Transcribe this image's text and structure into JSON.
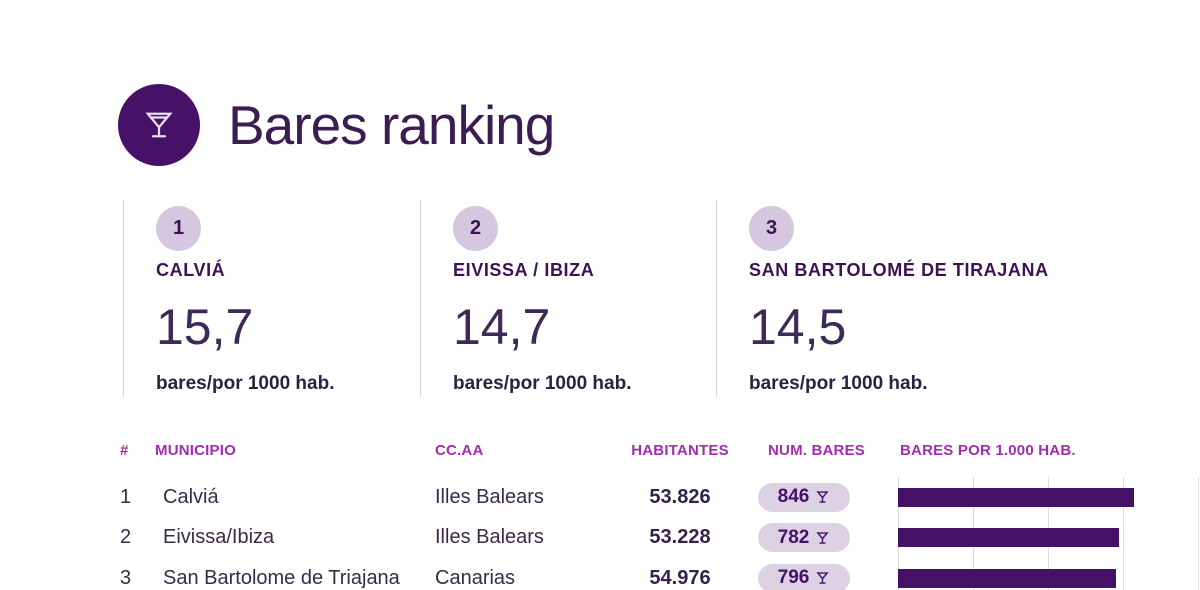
{
  "header": {
    "title": "Bares ranking"
  },
  "top3": [
    {
      "rank": "1",
      "name": "CALVIÁ",
      "value": "15,7",
      "unit": "bares/por 1000 hab."
    },
    {
      "rank": "2",
      "name": "EIVISSA / IBIZA",
      "value": "14,7",
      "unit": "bares/por 1000 hab."
    },
    {
      "rank": "3",
      "name": "SAN BARTOLOMÉ DE TIRAJANA",
      "value": "14,5",
      "unit": "bares/por 1000 hab."
    }
  ],
  "table": {
    "columns": [
      "#",
      "MUNICIPIO",
      "CC.AA",
      "HABITANTES",
      "NUM. BARES",
      "BARES POR 1.000 HAB."
    ],
    "rows": [
      {
        "rank": "1",
        "municipio": "Calviá",
        "ccaa": "Illes Balears",
        "habitantes": "53.826",
        "num_bares": "846"
      },
      {
        "rank": "2",
        "municipio": "Eivissa/Ibiza",
        "ccaa": "Illes Balears",
        "habitantes": "53.228",
        "num_bares": "782"
      },
      {
        "rank": "3",
        "municipio": "San Bartolome de Triajana",
        "ccaa": "Canarias",
        "habitantes": "54.976",
        "num_bares": "796"
      }
    ]
  },
  "chart_data": {
    "type": "bar",
    "orientation": "horizontal",
    "title": "BARES POR 1.000 HAB.",
    "categories": [
      "Calviá",
      "Eivissa/Ibiza",
      "San Bartolome de Triajana"
    ],
    "values": [
      15.7,
      14.7,
      14.5
    ],
    "xlim": [
      0,
      20
    ],
    "gridline_step": 5,
    "grid": true,
    "legend": false
  },
  "colors": {
    "accent_dark_purple": "#471168",
    "bar_purple": "#451167",
    "header_magenta": "#a32cb0",
    "pill_background": "#dcd2e4",
    "badge_background": "#d6c7e0",
    "text_dark": "#3a2a4a",
    "divider": "#d9d6de",
    "gridline": "#dcdcdf"
  },
  "icons": {
    "martini": "martini-icon"
  }
}
